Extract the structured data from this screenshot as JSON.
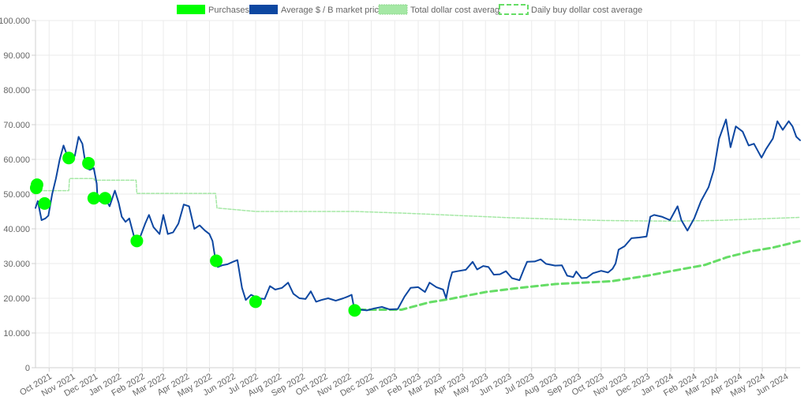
{
  "chart_data": {
    "type": "line",
    "title": "",
    "xlabel": "",
    "ylabel": "",
    "ylim": [
      0,
      100000
    ],
    "y_ticks": [
      "0",
      "10.000",
      "20.000",
      "30.000",
      "40.000",
      "50.000",
      "60.000",
      "70.000",
      "80.000",
      "90.000",
      "100.000"
    ],
    "x_ticks": [
      "Oct 2021",
      "Nov 2021",
      "Dec 2021",
      "Jan 2022",
      "Feb 2022",
      "Mar 2022",
      "Apr 2022",
      "May 2022",
      "Jun 2022",
      "Jul 2022",
      "Aug 2022",
      "Sep 2022",
      "Oct 2022",
      "Nov 2022",
      "Dec 2022",
      "Jan 2023",
      "Feb 2023",
      "Mar 2023",
      "Apr 2023",
      "May 2023",
      "Jun 2023",
      "Jul 2023",
      "Aug 2023",
      "Sep 2023",
      "Oct 2023",
      "Nov 2023",
      "Dec 2023",
      "Jan 2024",
      "Feb 2024",
      "Mar 2024",
      "Apr 2024",
      "May 2024",
      "Jun 2024"
    ],
    "xlim": [
      "2021-09-13",
      "2024-06-20"
    ],
    "grid": true,
    "legend_position": "top",
    "series": [
      {
        "name": "Purchases",
        "kind": "points",
        "color": "#00ff00",
        "points": [
          [
            "2021-09-14",
            51800
          ],
          [
            "2021-09-15",
            52700
          ],
          [
            "2021-09-25",
            47300
          ],
          [
            "2021-10-27",
            60400
          ],
          [
            "2021-11-22",
            58900
          ],
          [
            "2021-11-29",
            48800
          ],
          [
            "2021-12-14",
            48800
          ],
          [
            "2022-01-25",
            36500
          ],
          [
            "2022-05-10",
            30800
          ],
          [
            "2022-07-01",
            19000
          ],
          [
            "2022-11-09",
            16500
          ]
        ]
      },
      {
        "name": "Average $ / B market price",
        "kind": "line",
        "color": "#0d47a1",
        "points": [
          [
            "2021-09-13",
            46000
          ],
          [
            "2021-09-16",
            48000
          ],
          [
            "2021-09-21",
            42500
          ],
          [
            "2021-09-26",
            43000
          ],
          [
            "2021-09-30",
            43800
          ],
          [
            "2021-10-05",
            50000
          ],
          [
            "2021-10-10",
            54500
          ],
          [
            "2021-10-15",
            60000
          ],
          [
            "2021-10-20",
            64000
          ],
          [
            "2021-10-25",
            61000
          ],
          [
            "2021-10-30",
            61500
          ],
          [
            "2021-11-04",
            61000
          ],
          [
            "2021-11-09",
            66500
          ],
          [
            "2021-11-14",
            64500
          ],
          [
            "2021-11-19",
            57500
          ],
          [
            "2021-11-24",
            57000
          ],
          [
            "2021-11-29",
            57500
          ],
          [
            "2021-12-03",
            53000
          ],
          [
            "2021-12-04",
            48500
          ],
          [
            "2021-12-10",
            47500
          ],
          [
            "2021-12-15",
            48500
          ],
          [
            "2021-12-20",
            46500
          ],
          [
            "2021-12-27",
            51000
          ],
          [
            "2022-01-01",
            47500
          ],
          [
            "2022-01-05",
            43500
          ],
          [
            "2022-01-10",
            42000
          ],
          [
            "2022-01-15",
            43000
          ],
          [
            "2022-01-21",
            38000
          ],
          [
            "2022-01-24",
            36500
          ],
          [
            "2022-01-30",
            38000
          ],
          [
            "2022-02-05",
            41500
          ],
          [
            "2022-02-10",
            44000
          ],
          [
            "2022-02-16",
            40500
          ],
          [
            "2022-02-24",
            38500
          ],
          [
            "2022-03-01",
            44000
          ],
          [
            "2022-03-07",
            38500
          ],
          [
            "2022-03-14",
            39000
          ],
          [
            "2022-03-21",
            41500
          ],
          [
            "2022-03-28",
            47000
          ],
          [
            "2022-04-04",
            46500
          ],
          [
            "2022-04-11",
            40000
          ],
          [
            "2022-04-18",
            41000
          ],
          [
            "2022-04-25",
            39500
          ],
          [
            "2022-05-01",
            38500
          ],
          [
            "2022-05-05",
            36500
          ],
          [
            "2022-05-09",
            31000
          ],
          [
            "2022-05-12",
            29000
          ],
          [
            "2022-05-18",
            29500
          ],
          [
            "2022-05-25",
            29800
          ],
          [
            "2022-06-01",
            30500
          ],
          [
            "2022-06-07",
            31000
          ],
          [
            "2022-06-13",
            23000
          ],
          [
            "2022-06-18",
            19500
          ],
          [
            "2022-06-25",
            21000
          ],
          [
            "2022-07-05",
            20000
          ],
          [
            "2022-07-13",
            19800
          ],
          [
            "2022-07-20",
            23500
          ],
          [
            "2022-07-27",
            22500
          ],
          [
            "2022-08-05",
            23000
          ],
          [
            "2022-08-13",
            24500
          ],
          [
            "2022-08-20",
            21300
          ],
          [
            "2022-08-28",
            20000
          ],
          [
            "2022-09-05",
            19800
          ],
          [
            "2022-09-12",
            22000
          ],
          [
            "2022-09-19",
            19000
          ],
          [
            "2022-09-26",
            19500
          ],
          [
            "2022-10-05",
            20000
          ],
          [
            "2022-10-15",
            19300
          ],
          [
            "2022-10-25",
            20000
          ],
          [
            "2022-10-31",
            20500
          ],
          [
            "2022-11-05",
            21000
          ],
          [
            "2022-11-08",
            17500
          ],
          [
            "2022-11-10",
            16000
          ],
          [
            "2022-11-15",
            16800
          ],
          [
            "2022-11-25",
            16500
          ],
          [
            "2022-12-05",
            17100
          ],
          [
            "2022-12-15",
            17500
          ],
          [
            "2022-12-25",
            16800
          ],
          [
            "2023-01-05",
            16900
          ],
          [
            "2023-01-14",
            20500
          ],
          [
            "2023-01-22",
            23000
          ],
          [
            "2023-02-01",
            23200
          ],
          [
            "2023-02-10",
            21800
          ],
          [
            "2023-02-16",
            24500
          ],
          [
            "2023-02-25",
            23200
          ],
          [
            "2023-03-06",
            22500
          ],
          [
            "2023-03-10",
            20000
          ],
          [
            "2023-03-14",
            24500
          ],
          [
            "2023-03-18",
            27500
          ],
          [
            "2023-03-25",
            27800
          ],
          [
            "2023-04-05",
            28200
          ],
          [
            "2023-04-14",
            30500
          ],
          [
            "2023-04-20",
            28300
          ],
          [
            "2023-04-28",
            29300
          ],
          [
            "2023-05-05",
            29000
          ],
          [
            "2023-05-12",
            26800
          ],
          [
            "2023-05-20",
            26900
          ],
          [
            "2023-05-28",
            27800
          ],
          [
            "2023-06-05",
            25800
          ],
          [
            "2023-06-15",
            25200
          ],
          [
            "2023-06-21",
            28500
          ],
          [
            "2023-06-25",
            30500
          ],
          [
            "2023-07-05",
            30600
          ],
          [
            "2023-07-13",
            31200
          ],
          [
            "2023-07-20",
            29900
          ],
          [
            "2023-08-01",
            29400
          ],
          [
            "2023-08-10",
            29500
          ],
          [
            "2023-08-17",
            26500
          ],
          [
            "2023-08-25",
            26100
          ],
          [
            "2023-08-29",
            27700
          ],
          [
            "2023-09-05",
            25800
          ],
          [
            "2023-09-12",
            25900
          ],
          [
            "2023-09-20",
            27200
          ],
          [
            "2023-10-01",
            27900
          ],
          [
            "2023-10-10",
            27400
          ],
          [
            "2023-10-16",
            28500
          ],
          [
            "2023-10-20",
            30000
          ],
          [
            "2023-10-24",
            34000
          ],
          [
            "2023-11-01",
            35000
          ],
          [
            "2023-11-10",
            37300
          ],
          [
            "2023-11-20",
            37500
          ],
          [
            "2023-11-30",
            37800
          ],
          [
            "2023-12-05",
            43500
          ],
          [
            "2023-12-10",
            44000
          ],
          [
            "2023-12-20",
            43500
          ],
          [
            "2023-12-31",
            42500
          ],
          [
            "2024-01-10",
            46500
          ],
          [
            "2024-01-15",
            42500
          ],
          [
            "2024-01-23",
            39500
          ],
          [
            "2024-02-01",
            43000
          ],
          [
            "2024-02-10",
            48000
          ],
          [
            "2024-02-20",
            52000
          ],
          [
            "2024-02-27",
            57000
          ],
          [
            "2024-03-05",
            66000
          ],
          [
            "2024-03-14",
            71500
          ],
          [
            "2024-03-20",
            63500
          ],
          [
            "2024-03-27",
            69500
          ],
          [
            "2024-04-05",
            68000
          ],
          [
            "2024-04-13",
            64000
          ],
          [
            "2024-04-20",
            64500
          ],
          [
            "2024-04-30",
            60500
          ],
          [
            "2024-05-06",
            63000
          ],
          [
            "2024-05-15",
            66000
          ],
          [
            "2024-05-21",
            71000
          ],
          [
            "2024-05-28",
            68500
          ],
          [
            "2024-06-05",
            71000
          ],
          [
            "2024-06-10",
            69500
          ],
          [
            "2024-06-15",
            66500
          ],
          [
            "2024-06-20",
            65500
          ]
        ]
      },
      {
        "name": "Total dollar cost average",
        "kind": "line",
        "color": "#a5e8a5",
        "points": [
          [
            "2021-09-13",
            52000
          ],
          [
            "2021-09-15",
            51500
          ],
          [
            "2021-09-20",
            51000
          ],
          [
            "2021-10-27",
            51000
          ],
          [
            "2021-10-28",
            54500
          ],
          [
            "2021-11-29",
            54500
          ],
          [
            "2021-11-30",
            54000
          ],
          [
            "2022-01-24",
            54000
          ],
          [
            "2022-01-25",
            50200
          ],
          [
            "2022-05-09",
            50200
          ],
          [
            "2022-05-11",
            46000
          ],
          [
            "2022-07-01",
            45000
          ],
          [
            "2022-11-09",
            45000
          ],
          [
            "2023-01-15",
            44500
          ],
          [
            "2023-06-01",
            43200
          ],
          [
            "2023-10-01",
            42400
          ],
          [
            "2024-01-01",
            42200
          ],
          [
            "2024-03-01",
            42400
          ],
          [
            "2024-06-20",
            43300
          ]
        ]
      },
      {
        "name": "Daily buy dollar cost average",
        "kind": "line",
        "color": "#66dd66",
        "dashed": true,
        "points": [
          [
            "2022-11-15",
            16700
          ],
          [
            "2023-01-10",
            16700
          ],
          [
            "2023-02-15",
            18800
          ],
          [
            "2023-03-15",
            19800
          ],
          [
            "2023-05-01",
            21800
          ],
          [
            "2023-06-15",
            23000
          ],
          [
            "2023-08-01",
            24100
          ],
          [
            "2023-09-15",
            24600
          ],
          [
            "2023-10-15",
            24900
          ],
          [
            "2023-12-01",
            26500
          ],
          [
            "2024-01-01",
            27800
          ],
          [
            "2024-02-15",
            29600
          ],
          [
            "2024-03-15",
            31800
          ],
          [
            "2024-04-15",
            33500
          ],
          [
            "2024-05-15",
            34600
          ],
          [
            "2024-06-20",
            36500
          ]
        ]
      }
    ]
  }
}
